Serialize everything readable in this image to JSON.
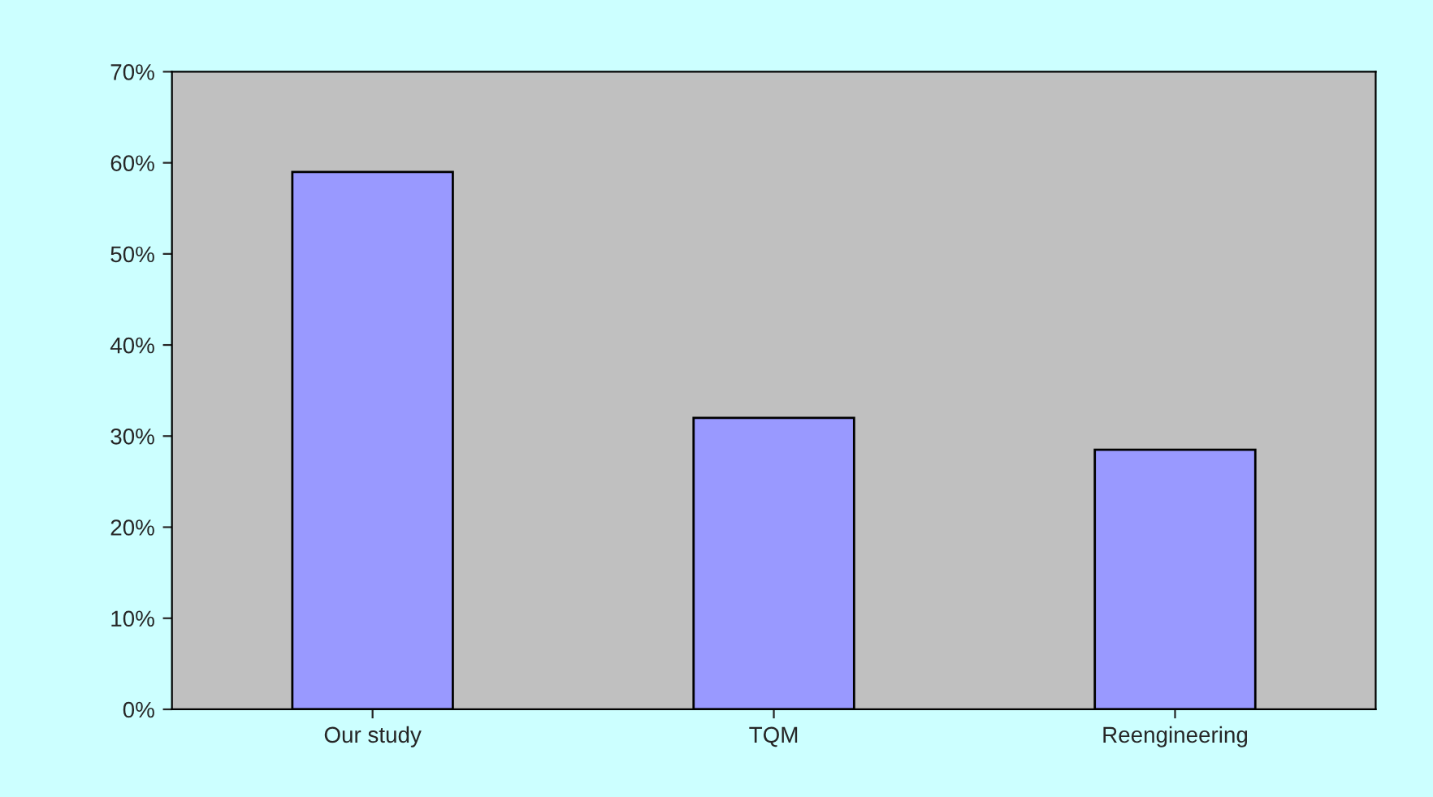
{
  "chart_data": {
    "type": "bar",
    "categories": [
      "Our study",
      "TQM",
      "Reengineering"
    ],
    "values": [
      59,
      32,
      28.5
    ],
    "color": "#9999ff",
    "ylim": [
      0,
      70
    ],
    "yticks": [
      {
        "value": 0,
        "label": "0%"
      },
      {
        "value": 10,
        "label": "10%"
      },
      {
        "value": 20,
        "label": "20%"
      },
      {
        "value": 30,
        "label": "30%"
      },
      {
        "value": 40,
        "label": "40%"
      },
      {
        "value": 50,
        "label": "50%"
      },
      {
        "value": 60,
        "label": "60%"
      },
      {
        "value": 70,
        "label": "70%"
      }
    ],
    "grid": false,
    "legend": false
  }
}
